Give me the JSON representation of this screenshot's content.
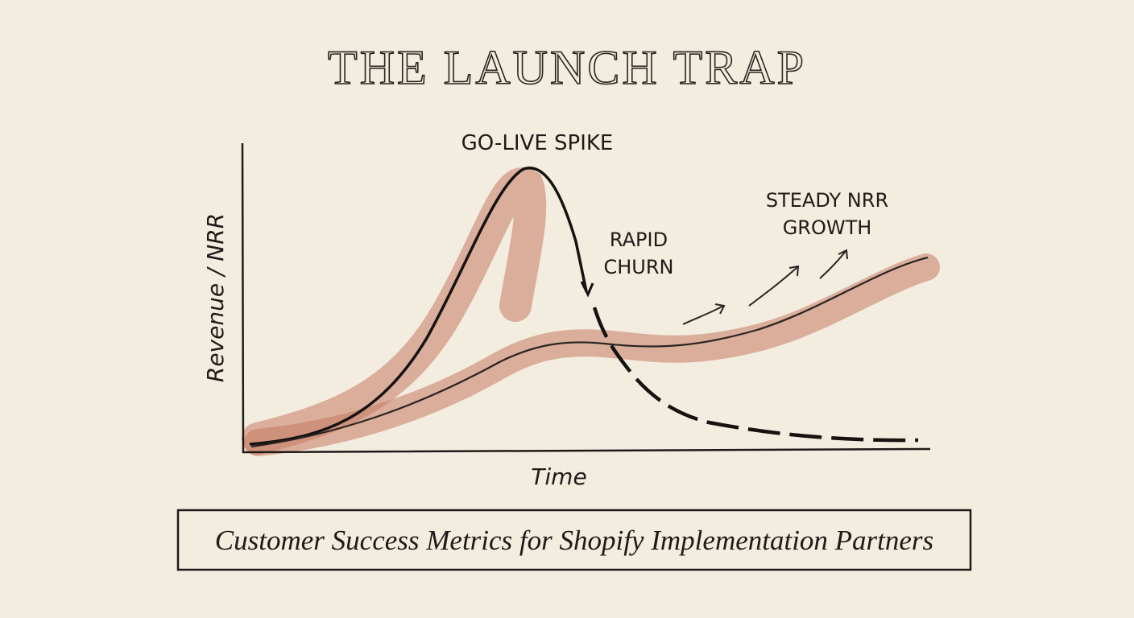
{
  "header": {
    "title": "THE LAUNCH TRAP"
  },
  "axes": {
    "y_label": "Revenue / NRR",
    "x_label": "Time"
  },
  "annotations": {
    "spike": "GO-LIVE SPIKE",
    "churn": [
      "RAPID",
      "CHURN"
    ],
    "growth": [
      "STEADY NRR",
      "GROWTH"
    ]
  },
  "footer": {
    "caption": "Customer Success Metrics for Shopify Implementation Partners"
  }
}
